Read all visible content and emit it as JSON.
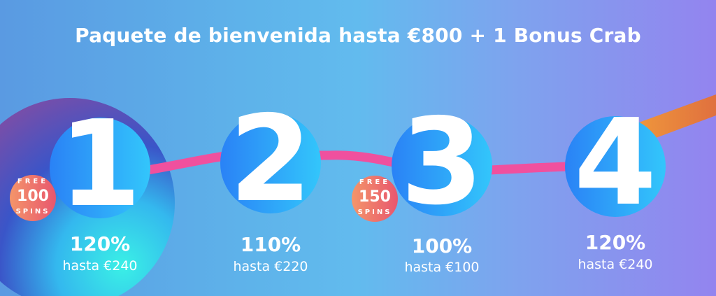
{
  "title": "Paquete de bienvenida hasta €800 + 1 Bonus Crab",
  "colors": {
    "ribbon": "#f0509e",
    "ribbon_orange": "#e8803e",
    "circle_start": "#2a82f6",
    "circle_end": "#33c6fb",
    "badge": "#ec6a6c"
  },
  "steps": [
    {
      "number": "1",
      "percent": "120%",
      "upto": "hasta €240",
      "badge": {
        "top": "FREE",
        "count": "100",
        "bottom": "SPINS"
      }
    },
    {
      "number": "2",
      "percent": "110%",
      "upto": "hasta €220"
    },
    {
      "number": "3",
      "percent": "100%",
      "upto": "hasta €100",
      "badge": {
        "top": "FREE",
        "count": "150",
        "bottom": "SPINS"
      }
    },
    {
      "number": "4",
      "percent": "120%",
      "upto": "hasta €240"
    }
  ]
}
